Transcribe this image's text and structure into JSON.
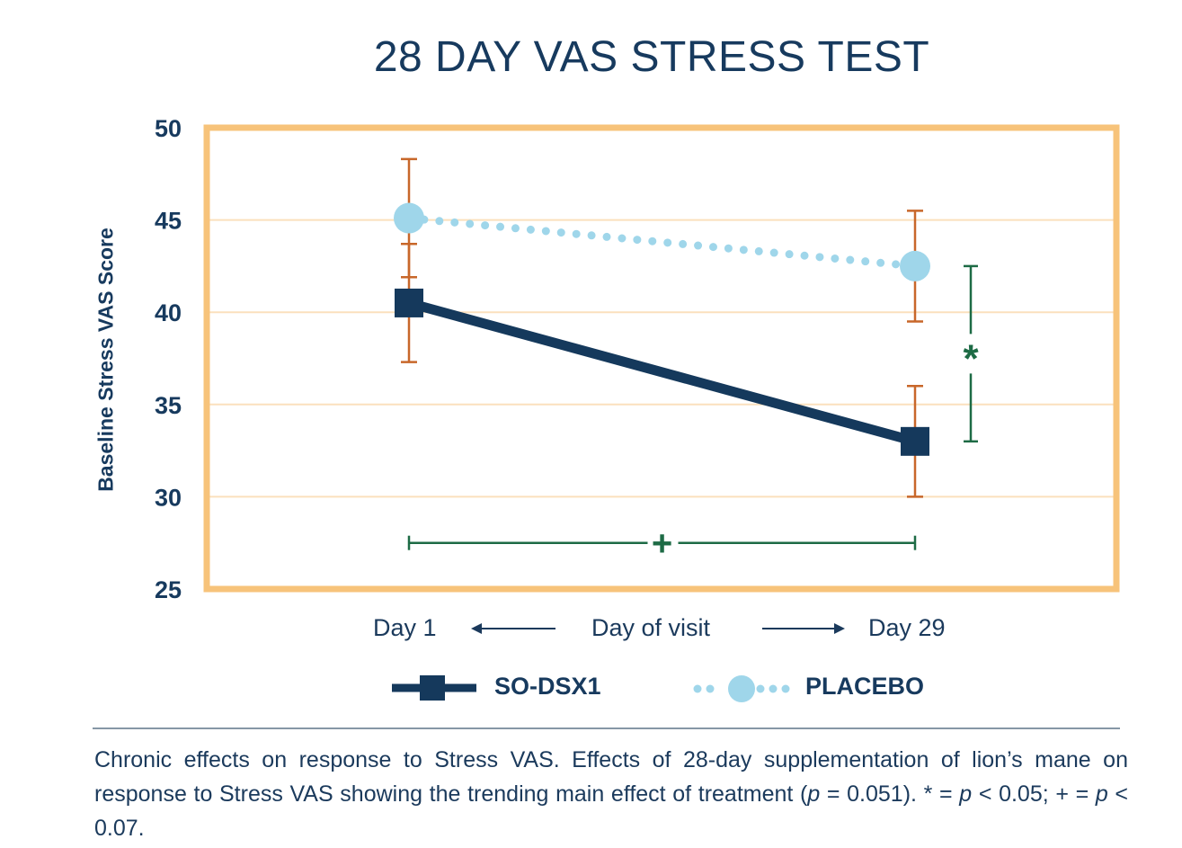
{
  "chart_data": {
    "type": "line",
    "title": "28 DAY VAS STRESS TEST",
    "ylabel": "Baseline Stress VAS Score",
    "xlabel": "Day of visit",
    "categories": [
      "Day 1",
      "Day 29"
    ],
    "ylim": [
      25,
      50
    ],
    "yticks": [
      50,
      45,
      40,
      35,
      30,
      25
    ],
    "grid": true,
    "legend_position": "bottom",
    "series": [
      {
        "name": "SO-DSX1",
        "values": [
          40.5,
          33.0
        ],
        "error": [
          3.2,
          3.0
        ],
        "color": "#15395c",
        "marker": "square",
        "line": "solid"
      },
      {
        "name": "PLACEBO",
        "values": [
          45.1,
          42.5
        ],
        "error": [
          3.2,
          3.0
        ],
        "color": "#9fd6ea",
        "marker": "circle",
        "line": "dotted"
      }
    ],
    "error_bar_color": "#c8672a",
    "frame_color": "#f7c37a",
    "significance": [
      {
        "symbol": "*",
        "between": "SO-DSX1 vs PLACEBO at Day 29",
        "range": [
          33.0,
          42.5
        ],
        "color": "#1d6b45"
      },
      {
        "symbol": "+",
        "between": "Day 1 to Day 29",
        "y": 27.5,
        "color": "#1d6b45"
      }
    ]
  },
  "axis_arrows": {
    "left": "Day 1",
    "center": "Day of visit",
    "right": "Day 29"
  },
  "caption": {
    "part1": "Chronic effects on response to Stress VAS. Effects of 28-day supplementation of lion’s mane on response to Stress VAS showing the trending main effect of treatment (",
    "p1": "p",
    "part2": " = 0.051). * = ",
    "p2": "p",
    "part3": " < 0.05; + = ",
    "p3": "p",
    "part4": " < 0.07."
  }
}
